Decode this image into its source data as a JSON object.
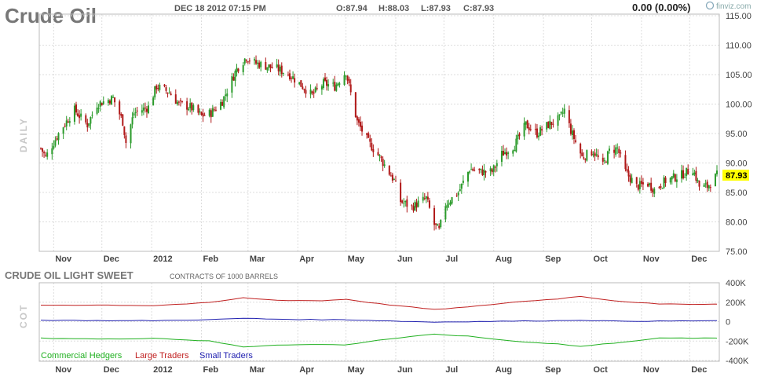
{
  "header": {
    "title": "Crude Oil",
    "datetime": "DEC 18 2012 07:15 PM",
    "open": "O:87.94",
    "high": "H:88.03",
    "low": "L:87.93",
    "close": "C:87.93",
    "change": "0.00 (0.00%)",
    "brand": "finviz.com",
    "period_label": "DAILY"
  },
  "colors": {
    "up": "#2a9a2a",
    "down": "#b01818",
    "grid": "#dddddd",
    "price_badge": "#ffff00",
    "large_traders": "#c02020",
    "small_traders": "#2020b0",
    "commercial_hedgers": "#20b020"
  },
  "chart_data": [
    {
      "type": "candlestick",
      "title": "Crude Oil",
      "ylabel": "",
      "xlabel": "",
      "ylim": [
        75,
        115
      ],
      "yticks": [
        "75.00",
        "80.00",
        "85.00",
        "90.00",
        "95.00",
        "100.00",
        "105.00",
        "110.00",
        "115.00"
      ],
      "months": [
        "Nov",
        "Dec",
        "2012",
        "Feb",
        "Mar",
        "Apr",
        "May",
        "Jun",
        "Jul",
        "Aug",
        "Sep",
        "Oct",
        "Nov",
        "Dec"
      ],
      "last_price": "87.93",
      "grid": true,
      "anchors": [
        [
          "2011-10-24",
          92.5
        ],
        [
          "2011-10-27",
          91.0
        ],
        [
          "2011-11-05",
          95.5
        ],
        [
          "2011-11-14",
          99.0
        ],
        [
          "2011-11-17",
          98.0
        ],
        [
          "2011-11-22",
          96.5
        ],
        [
          "2011-11-28",
          100.0
        ],
        [
          "2011-12-08",
          101.0
        ],
        [
          "2011-12-14",
          97.0
        ],
        [
          "2011-12-16",
          93.5
        ],
        [
          "2011-12-21",
          98.5
        ],
        [
          "2011-12-30",
          99.5
        ],
        [
          "2012-01-04",
          103.0
        ],
        [
          "2012-01-12",
          102.0
        ],
        [
          "2012-01-18",
          100.0
        ],
        [
          "2012-01-25",
          99.5
        ],
        [
          "2012-02-01",
          98.0
        ],
        [
          "2012-02-07",
          98.5
        ],
        [
          "2012-02-14",
          100.5
        ],
        [
          "2012-02-23",
          106.0
        ],
        [
          "2012-02-29",
          108.0
        ],
        [
          "2012-03-05",
          107.0
        ],
        [
          "2012-03-12",
          106.5
        ],
        [
          "2012-03-19",
          106.0
        ],
        [
          "2012-03-27",
          105.0
        ],
        [
          "2012-04-04",
          103.0
        ],
        [
          "2012-04-10",
          101.5
        ],
        [
          "2012-04-17",
          103.5
        ],
        [
          "2012-04-24",
          103.0
        ],
        [
          "2012-05-01",
          105.5
        ],
        [
          "2012-05-03",
          103.0
        ],
        [
          "2012-05-08",
          97.0
        ],
        [
          "2012-05-15",
          93.5
        ],
        [
          "2012-05-22",
          91.0
        ],
        [
          "2012-05-31",
          87.0
        ],
        [
          "2012-06-04",
          83.5
        ],
        [
          "2012-06-11",
          82.5
        ],
        [
          "2012-06-20",
          84.0
        ],
        [
          "2012-06-25",
          79.5
        ],
        [
          "2012-06-28",
          78.5
        ],
        [
          "2012-07-02",
          83.0
        ],
        [
          "2012-07-10",
          85.0
        ],
        [
          "2012-07-17",
          89.0
        ],
        [
          "2012-07-24",
          88.5
        ],
        [
          "2012-07-31",
          88.5
        ],
        [
          "2012-08-06",
          91.5
        ],
        [
          "2012-08-14",
          93.0
        ],
        [
          "2012-08-21",
          96.5
        ],
        [
          "2012-08-28",
          95.0
        ],
        [
          "2012-09-04",
          96.5
        ],
        [
          "2012-09-11",
          97.5
        ],
        [
          "2012-09-14",
          99.0
        ],
        [
          "2012-09-18",
          95.5
        ],
        [
          "2012-09-25",
          91.0
        ],
        [
          "2012-10-02",
          92.0
        ],
        [
          "2012-10-08",
          89.5
        ],
        [
          "2012-10-12",
          92.0
        ],
        [
          "2012-10-17",
          92.5
        ],
        [
          "2012-10-22",
          88.5
        ],
        [
          "2012-10-29",
          86.0
        ],
        [
          "2012-11-05",
          86.5
        ],
        [
          "2012-11-09",
          85.5
        ],
        [
          "2012-11-16",
          87.0
        ],
        [
          "2012-11-26",
          88.0
        ],
        [
          "2012-12-03",
          89.0
        ],
        [
          "2012-12-07",
          86.0
        ],
        [
          "2012-12-12",
          86.0
        ],
        [
          "2012-12-18",
          87.93
        ]
      ]
    },
    {
      "type": "line",
      "title": "CRUDE OIL LIGHT SWEET",
      "subtitle": "CONTRACTS OF 1000 BARRELS",
      "ylim": [
        -400000,
        400000
      ],
      "yticks": [
        "400K",
        "200K",
        "0",
        "-200K",
        "-400K"
      ],
      "series": [
        {
          "name": "Commercial Hedgers",
          "color": "#20b020",
          "points": [
            [
              "2011-10-24",
              -170000
            ],
            [
              "2011-12-05",
              -180000
            ],
            [
              "2012-01-02",
              -170000
            ],
            [
              "2012-02-06",
              -200000
            ],
            [
              "2012-02-27",
              -260000
            ],
            [
              "2012-03-19",
              -240000
            ],
            [
              "2012-04-16",
              -235000
            ],
            [
              "2012-05-01",
              -240000
            ],
            [
              "2012-05-21",
              -190000
            ],
            [
              "2012-06-25",
              -130000
            ],
            [
              "2012-07-16",
              -150000
            ],
            [
              "2012-08-13",
              -200000
            ],
            [
              "2012-09-10",
              -230000
            ],
            [
              "2012-09-24",
              -255000
            ],
            [
              "2012-10-15",
              -220000
            ],
            [
              "2012-11-12",
              -170000
            ],
            [
              "2012-12-18",
              -170000
            ]
          ]
        },
        {
          "name": "Large Traders",
          "color": "#c02020",
          "points": [
            [
              "2011-10-24",
              170000
            ],
            [
              "2011-12-05",
              170000
            ],
            [
              "2012-01-02",
              165000
            ],
            [
              "2012-02-06",
              195000
            ],
            [
              "2012-02-27",
              245000
            ],
            [
              "2012-03-19",
              220000
            ],
            [
              "2012-04-16",
              215000
            ],
            [
              "2012-05-01",
              230000
            ],
            [
              "2012-05-21",
              185000
            ],
            [
              "2012-06-25",
              125000
            ],
            [
              "2012-07-16",
              150000
            ],
            [
              "2012-08-13",
              200000
            ],
            [
              "2012-09-10",
              235000
            ],
            [
              "2012-09-24",
              260000
            ],
            [
              "2012-10-15",
              215000
            ],
            [
              "2012-11-12",
              180000
            ],
            [
              "2012-12-18",
              180000
            ]
          ]
        },
        {
          "name": "Small Traders",
          "color": "#2020b0",
          "points": [
            [
              "2011-10-24",
              15000
            ],
            [
              "2011-12-05",
              10000
            ],
            [
              "2012-01-02",
              10000
            ],
            [
              "2012-02-06",
              20000
            ],
            [
              "2012-02-27",
              35000
            ],
            [
              "2012-03-19",
              25000
            ],
            [
              "2012-04-16",
              20000
            ],
            [
              "2012-05-01",
              20000
            ],
            [
              "2012-05-21",
              10000
            ],
            [
              "2012-06-25",
              -5000
            ],
            [
              "2012-07-16",
              0
            ],
            [
              "2012-08-13",
              5000
            ],
            [
              "2012-09-10",
              10000
            ],
            [
              "2012-09-24",
              15000
            ],
            [
              "2012-10-15",
              5000
            ],
            [
              "2012-11-12",
              5000
            ],
            [
              "2012-12-18",
              10000
            ]
          ]
        }
      ]
    }
  ]
}
